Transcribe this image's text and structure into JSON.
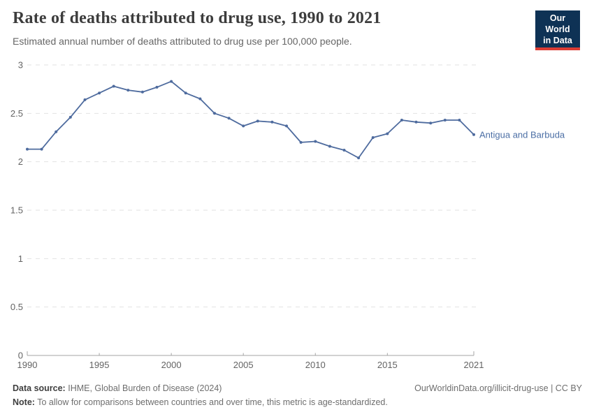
{
  "header": {
    "title": "Rate of deaths attributed to drug use, 1990 to 2021",
    "subtitle": "Estimated annual number of deaths attributed to drug use per 100,000 people.",
    "logo_line1": "Our World",
    "logo_line2": "in Data"
  },
  "chart_data": {
    "type": "line",
    "title": "Rate of deaths attributed to drug use, 1990 to 2021",
    "ylabel": "",
    "xlabel": "",
    "ylim": [
      0,
      3
    ],
    "yticks": [
      0,
      0.5,
      1,
      1.5,
      2,
      2.5,
      3
    ],
    "ytick_labels": [
      "0",
      "0.5",
      "1",
      "1.5",
      "2",
      "2.5",
      "3"
    ],
    "xticks": [
      1990,
      1995,
      2000,
      2005,
      2010,
      2015,
      2021
    ],
    "grid": "horizontal-dashed",
    "legend_position": "end-of-line",
    "x": [
      1990,
      1991,
      1992,
      1993,
      1994,
      1995,
      1996,
      1997,
      1998,
      1999,
      2000,
      2001,
      2002,
      2003,
      2004,
      2005,
      2006,
      2007,
      2008,
      2009,
      2010,
      2011,
      2012,
      2013,
      2014,
      2015,
      2016,
      2017,
      2018,
      2019,
      2020,
      2021
    ],
    "series": [
      {
        "name": "Antigua and Barbuda",
        "values": [
          2.13,
          2.13,
          2.31,
          2.46,
          2.64,
          2.71,
          2.78,
          2.74,
          2.72,
          2.77,
          2.83,
          2.71,
          2.65,
          2.5,
          2.45,
          2.37,
          2.42,
          2.41,
          2.37,
          2.2,
          2.21,
          2.16,
          2.12,
          2.04,
          2.25,
          2.29,
          2.43,
          2.41,
          2.4,
          2.43,
          2.43,
          2.28
        ]
      }
    ],
    "colors": {
      "line": "#4e6b9e",
      "series_label": "#4c6fa5",
      "grid": "#e2e2e2",
      "axis": "#a5a5a5",
      "tick_label": "#646464"
    }
  },
  "footer": {
    "data_source_label": "Data source:",
    "data_source_value": "IHME, Global Burden of Disease (2024)",
    "attribution": "OurWorldinData.org/illicit-drug-use | CC BY",
    "note_label": "Note:",
    "note_value": "To allow for comparisons between countries and over time, this metric is age-standardized."
  }
}
